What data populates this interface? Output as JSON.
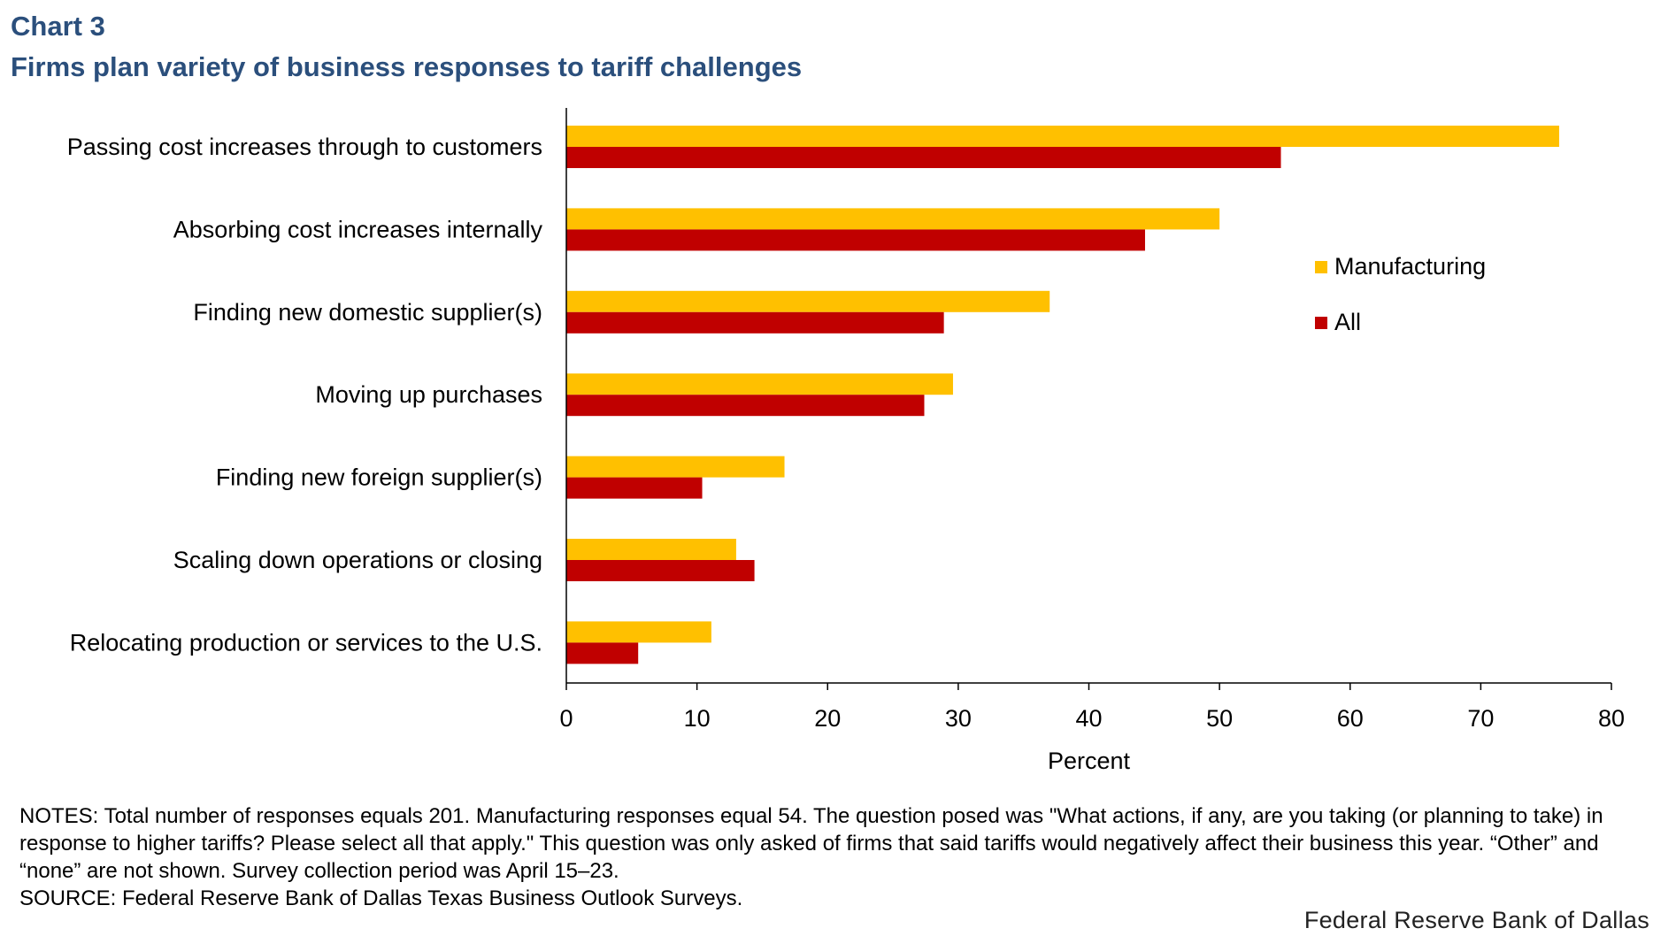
{
  "header": {
    "label": "Chart 3",
    "title": "Firms plan variety of business responses to tariff challenges"
  },
  "chart_data": {
    "type": "bar",
    "orientation": "horizontal",
    "categories": [
      "Passing cost increases through to customers",
      "Absorbing cost increases internally",
      "Finding new domestic supplier(s)",
      "Moving up purchases",
      "Finding new foreign supplier(s)",
      "Scaling down operations or closing",
      "Relocating production or services to the U.S."
    ],
    "series": [
      {
        "name": "Manufacturing",
        "color": "#ffc000",
        "values": [
          76.0,
          50.0,
          37.0,
          29.6,
          16.7,
          13.0,
          11.1
        ]
      },
      {
        "name": "All",
        "color": "#c00000",
        "values": [
          54.7,
          44.3,
          28.9,
          27.4,
          10.4,
          14.4,
          5.5
        ]
      }
    ],
    "xlabel": "Percent",
    "xlim": [
      0,
      80
    ],
    "xticks": [
      0,
      10,
      20,
      30,
      40,
      50,
      60,
      70,
      80
    ],
    "grid": false,
    "legend_position": "right"
  },
  "footer": {
    "notes": "NOTES: Total number of responses equals 201. Manufacturing responses equal 54. The question posed was \"What actions, if any, are you taking (or planning to take) in response to higher tariffs? Please select all that apply.\" This question was only asked of firms that said tariffs would negatively affect their business this year. “Other” and “none” are not shown. Survey collection period was April 15–23.",
    "source": "SOURCE: Federal Reserve Bank of Dallas Texas Business Outlook Surveys.",
    "branding": "Federal Reserve Bank of Dallas"
  }
}
